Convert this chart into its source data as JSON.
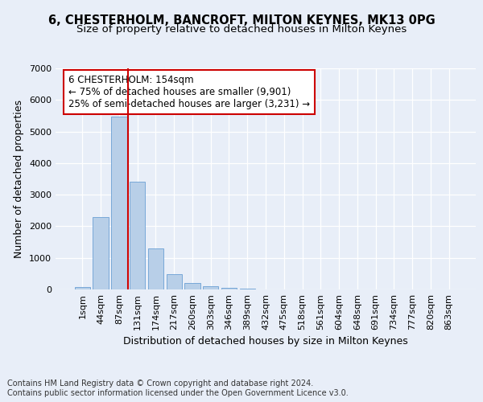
{
  "title1": "6, CHESTERHOLM, BANCROFT, MILTON KEYNES, MK13 0PG",
  "title2": "Size of property relative to detached houses in Milton Keynes",
  "xlabel": "Distribution of detached houses by size in Milton Keynes",
  "ylabel": "Number of detached properties",
  "categories": [
    "1sqm",
    "44sqm",
    "87sqm",
    "131sqm",
    "174sqm",
    "217sqm",
    "260sqm",
    "303sqm",
    "346sqm",
    "389sqm",
    "432sqm",
    "475sqm",
    "518sqm",
    "561sqm",
    "604sqm",
    "648sqm",
    "691sqm",
    "734sqm",
    "777sqm",
    "820sqm",
    "863sqm"
  ],
  "values": [
    70,
    2280,
    5470,
    3400,
    1300,
    480,
    200,
    110,
    60,
    30,
    0,
    0,
    0,
    0,
    0,
    0,
    0,
    0,
    0,
    0,
    0
  ],
  "bar_color": "#b8cfe8",
  "bar_edge_color": "#6a9fd4",
  "vline_color": "#cc0000",
  "vline_x_index": 3,
  "annotation_text": "6 CHESTERHOLM: 154sqm\n← 75% of detached houses are smaller (9,901)\n25% of semi-detached houses are larger (3,231) →",
  "annotation_box_color": "#ffffff",
  "annotation_box_edge": "#cc0000",
  "ylim": [
    0,
    7000
  ],
  "yticks": [
    0,
    1000,
    2000,
    3000,
    4000,
    5000,
    6000,
    7000
  ],
  "footer": "Contains HM Land Registry data © Crown copyright and database right 2024.\nContains public sector information licensed under the Open Government Licence v3.0.",
  "bg_color": "#e8eef8",
  "plot_bg_color": "#e8eef8",
  "grid_color": "#ffffff",
  "title1_fontsize": 10.5,
  "title2_fontsize": 9.5,
  "axis_label_fontsize": 9,
  "tick_fontsize": 8,
  "footer_fontsize": 7,
  "annotation_fontsize": 8.5
}
